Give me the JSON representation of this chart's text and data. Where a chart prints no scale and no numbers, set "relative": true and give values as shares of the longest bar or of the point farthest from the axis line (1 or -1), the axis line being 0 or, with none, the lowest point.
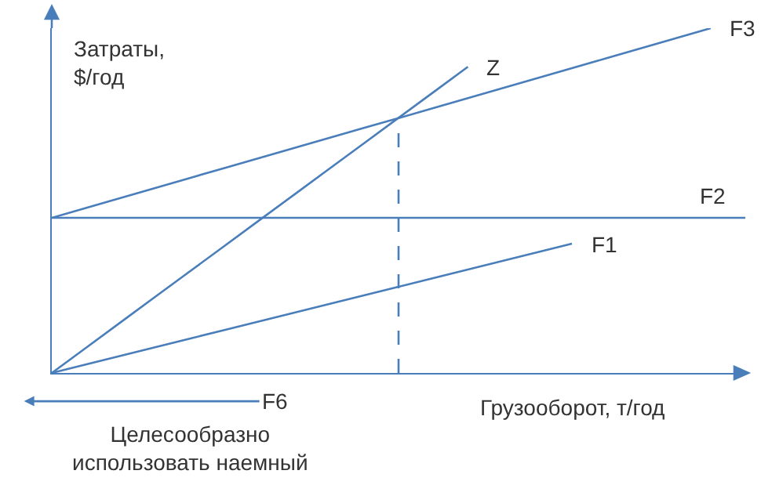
{
  "chart_data": {
    "type": "line",
    "relative": true,
    "xlabel": "Грузооборот, т/год",
    "ylabel": "Затраты,\n$/год",
    "legend": false,
    "marker": "none",
    "line_style": "solid",
    "categories": [
      null,
      null,
      null,
      null,
      null,
      null,
      null,
      null,
      null,
      null,
      null,
      null,
      null,
      null,
      null,
      null,
      null,
      null,
      null,
      null,
      null
    ],
    "series": [
      {
        "name": "Z",
        "color": "#4a7ebb",
        "values": [
          0,
          0.074,
          0.148,
          0.222,
          0.296,
          0.37,
          0.444,
          0.518,
          0.592,
          0.666,
          0.74,
          0.814,
          0.888,
          null,
          null,
          null,
          null,
          null,
          null,
          null,
          null
        ]
      },
      {
        "name": "F3",
        "color": "#4a7ebb",
        "values": [
          0.45,
          0.479,
          0.508,
          0.537,
          0.566,
          0.595,
          0.624,
          0.653,
          0.682,
          0.711,
          0.739,
          0.768,
          0.797,
          0.826,
          0.855,
          0.884,
          0.913,
          0.942,
          0.971,
          1,
          null
        ]
      },
      {
        "name": "F2",
        "color": "#4a7ebb",
        "values": [
          0.45,
          0.45,
          0.45,
          0.45,
          0.45,
          0.45,
          0.45,
          0.45,
          0.45,
          0.45,
          0.45,
          0.45,
          0.45,
          0.45,
          0.45,
          0.45,
          0.45,
          0.45,
          0.45,
          0.45,
          0.45
        ]
      },
      {
        "name": "F1",
        "color": "#4a7ebb",
        "values": [
          0,
          0.025,
          0.05,
          0.075,
          0.1,
          0.125,
          0.15,
          0.175,
          0.2,
          0.225,
          0.25,
          0.275,
          0.3,
          0.325,
          0.35,
          0.375,
          null,
          null,
          null,
          null,
          null
        ]
      }
    ],
    "annotations": [
      "F6",
      "Целесообразно\nиспользовать наемный"
    ]
  }
}
